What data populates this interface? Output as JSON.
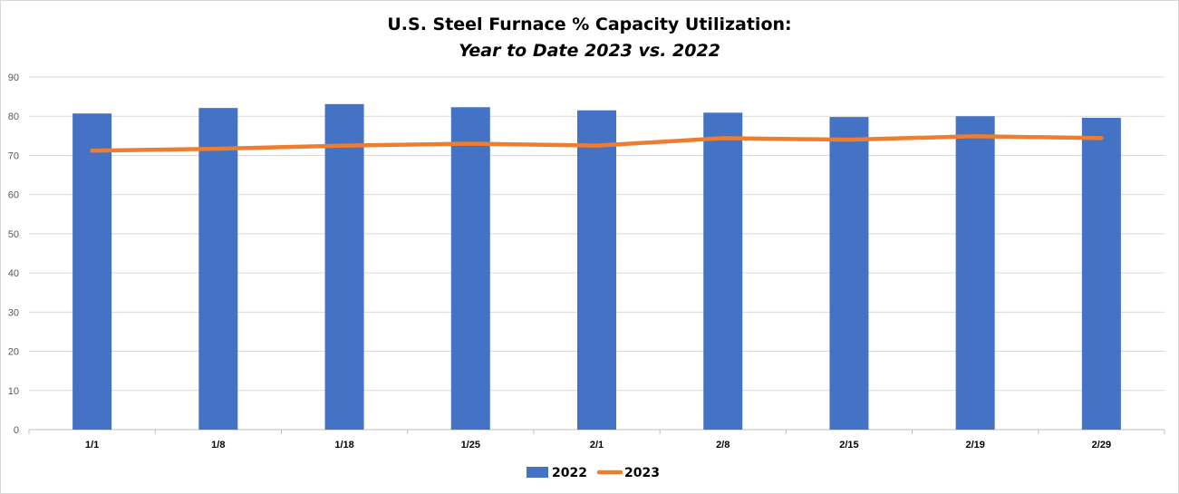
{
  "chart_data": {
    "type": "bar",
    "title": "U.S. Steel Furnace % Capacity Utilization:",
    "subtitle": "Year to Date 2023 vs. 2022",
    "categories": [
      "1/1",
      "1/8",
      "1/18",
      "1/25",
      "2/1",
      "2/8",
      "2/15",
      "2/19",
      "2/29"
    ],
    "series": [
      {
        "name": "2022",
        "type": "bar",
        "color": "#4472C4",
        "values": [
          80.7,
          82.1,
          83.1,
          82.3,
          81.5,
          80.9,
          79.8,
          80.0,
          79.6
        ]
      },
      {
        "name": "2023",
        "type": "line",
        "color": "#ED7D31",
        "values": [
          71.2,
          71.7,
          72.5,
          73.0,
          72.5,
          74.4,
          74.0,
          74.9,
          74.4
        ]
      }
    ],
    "ylim": [
      0,
      90
    ],
    "yticks": [
      0,
      10,
      20,
      30,
      40,
      50,
      60,
      70,
      80,
      90
    ],
    "grid": true,
    "legend": "bottom"
  }
}
